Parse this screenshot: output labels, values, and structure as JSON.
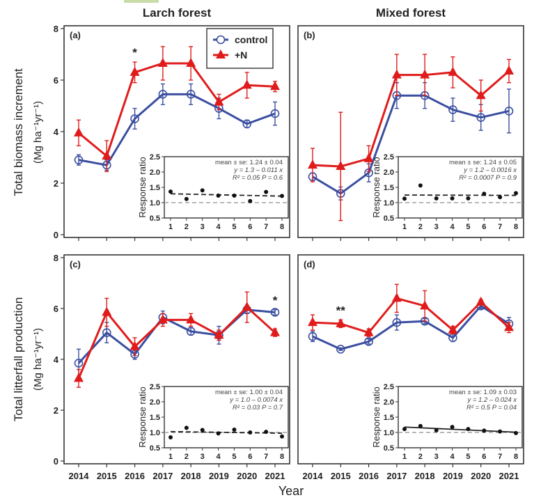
{
  "figure": {
    "col_titles": [
      "Larch forest",
      "Mixed forest"
    ],
    "row_ylabels": [
      {
        "line1": "Total biomass increment",
        "line2": "(Mg ha⁻¹yr⁻¹)"
      },
      {
        "line1": "Total litterfall production",
        "line2": "(Mg ha⁻¹yr⁻¹)"
      }
    ],
    "xlabel": "Year",
    "legend": [
      {
        "label": "control",
        "color": "#3a4ea0",
        "marker": "open-circle"
      },
      {
        "label": "+N",
        "color": "#e01b1b",
        "marker": "filled-triangle"
      }
    ],
    "inset_ylabel": "Response ratio",
    "colors": {
      "control": "#3a4ea0",
      "nitrogen": "#e01b1b",
      "ref_line": "#a0a0a0",
      "axis": "#222222"
    }
  },
  "chart_data": [
    {
      "type": "line",
      "panel": "(a)",
      "forest": "Larch forest",
      "ylabel": "Total biomass increment (Mg ha-1 yr-1)",
      "xlabel": "Year",
      "categories": [
        "2014",
        "2015",
        "2016",
        "2017",
        "2018",
        "2019",
        "2020",
        "2021"
      ],
      "ylim": [
        0,
        8
      ],
      "yticks": [
        0,
        2,
        4,
        6,
        8
      ],
      "series": [
        {
          "name": "control",
          "values": [
            2.9,
            2.7,
            4.5,
            5.45,
            5.45,
            4.9,
            4.3,
            4.7
          ],
          "err": [
            0.2,
            0.2,
            0.4,
            0.4,
            0.4,
            0.4,
            0.15,
            0.45
          ]
        },
        {
          "name": "+N",
          "values": [
            3.95,
            3.05,
            6.3,
            6.65,
            6.65,
            5.15,
            5.8,
            5.75
          ],
          "err": [
            0.5,
            0.6,
            0.4,
            0.65,
            0.65,
            0.3,
            0.5,
            0.2
          ]
        }
      ],
      "significance": [
        {
          "year": "2016",
          "mark": "*"
        }
      ],
      "legend_position": "top-right",
      "inset": {
        "type": "scatter",
        "x": [
          1,
          2,
          3,
          4,
          5,
          6,
          7,
          8
        ],
        "values": [
          1.36,
          1.12,
          1.4,
          1.23,
          1.23,
          1.05,
          1.35,
          1.22
        ],
        "ylim": [
          0.5,
          2.5
        ],
        "yticks": [
          "0.5",
          "1.0",
          "1.5",
          "2.0",
          "2.5"
        ],
        "xticks": [
          "1",
          "2",
          "3",
          "4",
          "5",
          "6",
          "7",
          "8"
        ],
        "fit": {
          "intercept": 1.3,
          "slope": -0.011,
          "style": "dashed"
        },
        "reference": 1.0,
        "stats": [
          "mean ± se: 1.24 ± 0.04",
          "y = 1.3 – 0.011 x",
          "R² = 0.05    P = 0.6"
        ]
      }
    },
    {
      "type": "line",
      "panel": "(b)",
      "forest": "Mixed forest",
      "ylabel": "Total biomass increment (Mg ha-1 yr-1)",
      "xlabel": "Year",
      "categories": [
        "2014",
        "2015",
        "2016",
        "2017",
        "2018",
        "2019",
        "2020",
        "2021"
      ],
      "ylim": [
        0,
        8
      ],
      "yticks": [
        0,
        2,
        4,
        6,
        8
      ],
      "series": [
        {
          "name": "control",
          "values": [
            2.25,
            1.6,
            2.4,
            5.4,
            5.4,
            4.85,
            4.55,
            4.8
          ],
          "err": [
            0.15,
            0.25,
            0.35,
            0.5,
            0.5,
            0.45,
            0.5,
            0.85
          ]
        },
        {
          "name": "+N",
          "values": [
            2.7,
            2.65,
            2.95,
            6.2,
            6.2,
            6.3,
            5.4,
            6.35
          ],
          "err": [
            0.65,
            2.1,
            0.5,
            0.8,
            0.8,
            0.6,
            0.6,
            0.45
          ]
        }
      ],
      "significance": [],
      "inset": {
        "type": "scatter",
        "x": [
          1,
          2,
          3,
          4,
          5,
          6,
          7,
          8
        ],
        "values": [
          1.13,
          1.56,
          1.14,
          1.14,
          1.14,
          1.29,
          1.18,
          1.31
        ],
        "ylim": [
          0.5,
          2.5
        ],
        "yticks": [
          "0.5",
          "1.0",
          "1.5",
          "2.0",
          "2.5"
        ],
        "xticks": [
          "1",
          "2",
          "3",
          "4",
          "5",
          "6",
          "7",
          "8"
        ],
        "fit": {
          "intercept": 1.25,
          "slope": -0.0016,
          "style": "dashed"
        },
        "reference": 1.0,
        "stats": [
          "mean ± se: 1.24 ± 0.05",
          "y = 1.2 – 0.0016 x",
          "R² = 0.0007    P = 0.9"
        ]
      }
    },
    {
      "type": "line",
      "panel": "(c)",
      "forest": "Larch forest",
      "ylabel": "Total litterfall production (Mg ha-1 yr-1)",
      "xlabel": "Year",
      "categories": [
        "2014",
        "2015",
        "2016",
        "2017",
        "2018",
        "2019",
        "2020",
        "2021"
      ],
      "ylim": [
        0,
        8
      ],
      "yticks": [
        0,
        2,
        4,
        6,
        8
      ],
      "series": [
        {
          "name": "control",
          "values": [
            3.85,
            5.05,
            4.2,
            5.65,
            5.1,
            4.95,
            5.95,
            5.85
          ],
          "err": [
            0.55,
            0.4,
            0.2,
            0.25,
            0.15,
            0.35,
            0.15,
            0.1
          ]
        },
        {
          "name": "+N",
          "values": [
            3.25,
            5.85,
            4.5,
            5.55,
            5.55,
            4.95,
            6.05,
            5.05
          ],
          "err": [
            0.35,
            0.55,
            0.35,
            0.25,
            0.25,
            0.2,
            0.6,
            0.15
          ]
        }
      ],
      "significance": [
        {
          "year": "2021",
          "mark": "*"
        }
      ],
      "inset": {
        "type": "scatter",
        "x": [
          1,
          2,
          3,
          4,
          5,
          6,
          7,
          8
        ],
        "values": [
          0.84,
          1.15,
          1.08,
          0.97,
          1.09,
          1.0,
          1.02,
          0.87
        ],
        "ylim": [
          0.5,
          2.5
        ],
        "yticks": [
          "0.5",
          "1.0",
          "1.5",
          "2.0",
          "2.5"
        ],
        "xticks": [
          "1",
          "2",
          "3",
          "4",
          "5",
          "6",
          "7",
          "8"
        ],
        "fit": {
          "intercept": 1.035,
          "slope": -0.0074,
          "style": "dashed"
        },
        "reference": 1.0,
        "stats": [
          "mean ± se: 1.00 ± 0.04",
          "y = 1.0 – 0.0074 x",
          "R² = 0.03    P = 0.7"
        ]
      }
    },
    {
      "type": "line",
      "panel": "(d)",
      "forest": "Mixed forest",
      "ylabel": "Total litterfall production (Mg ha-1 yr-1)",
      "xlabel": "Year",
      "categories": [
        "2014",
        "2015",
        "2016",
        "2017",
        "2018",
        "2019",
        "2020",
        "2021"
      ],
      "ylim": [
        0,
        8
      ],
      "yticks": [
        0,
        2,
        4,
        6,
        8
      ],
      "series": [
        {
          "name": "control",
          "values": [
            4.9,
            4.4,
            4.7,
            5.45,
            5.5,
            4.85,
            6.1,
            5.4
          ],
          "err": [
            0.2,
            0.05,
            0.1,
            0.3,
            0.1,
            0.15,
            0.1,
            0.25
          ]
        },
        {
          "name": "+N",
          "values": [
            5.45,
            5.4,
            5.05,
            6.4,
            6.1,
            5.15,
            6.25,
            5.25
          ],
          "err": [
            0.3,
            0.15,
            0.15,
            0.55,
            0.6,
            0.15,
            0.1,
            0.2
          ]
        }
      ],
      "significance": [
        {
          "year": "2015",
          "mark": "**"
        }
      ],
      "inset": {
        "type": "scatter",
        "x": [
          1,
          2,
          3,
          4,
          5,
          6,
          7,
          8
        ],
        "values": [
          1.11,
          1.21,
          1.07,
          1.18,
          1.11,
          1.06,
          1.03,
          0.98
        ],
        "ylim": [
          0.5,
          2.5
        ],
        "yticks": [
          "0.5",
          "1.0",
          "1.5",
          "2.0",
          "2.5"
        ],
        "xticks": [
          "1",
          "2",
          "3",
          "4",
          "5",
          "6",
          "7",
          "8"
        ],
        "fit": {
          "intercept": 1.2,
          "slope": -0.024,
          "style": "solid"
        },
        "reference": 1.0,
        "stats": [
          "mean ± se: 1.09 ± 0.03",
          "y = 1.2 – 0.024 x",
          "R² = 0.5    P = 0.04"
        ]
      }
    }
  ]
}
